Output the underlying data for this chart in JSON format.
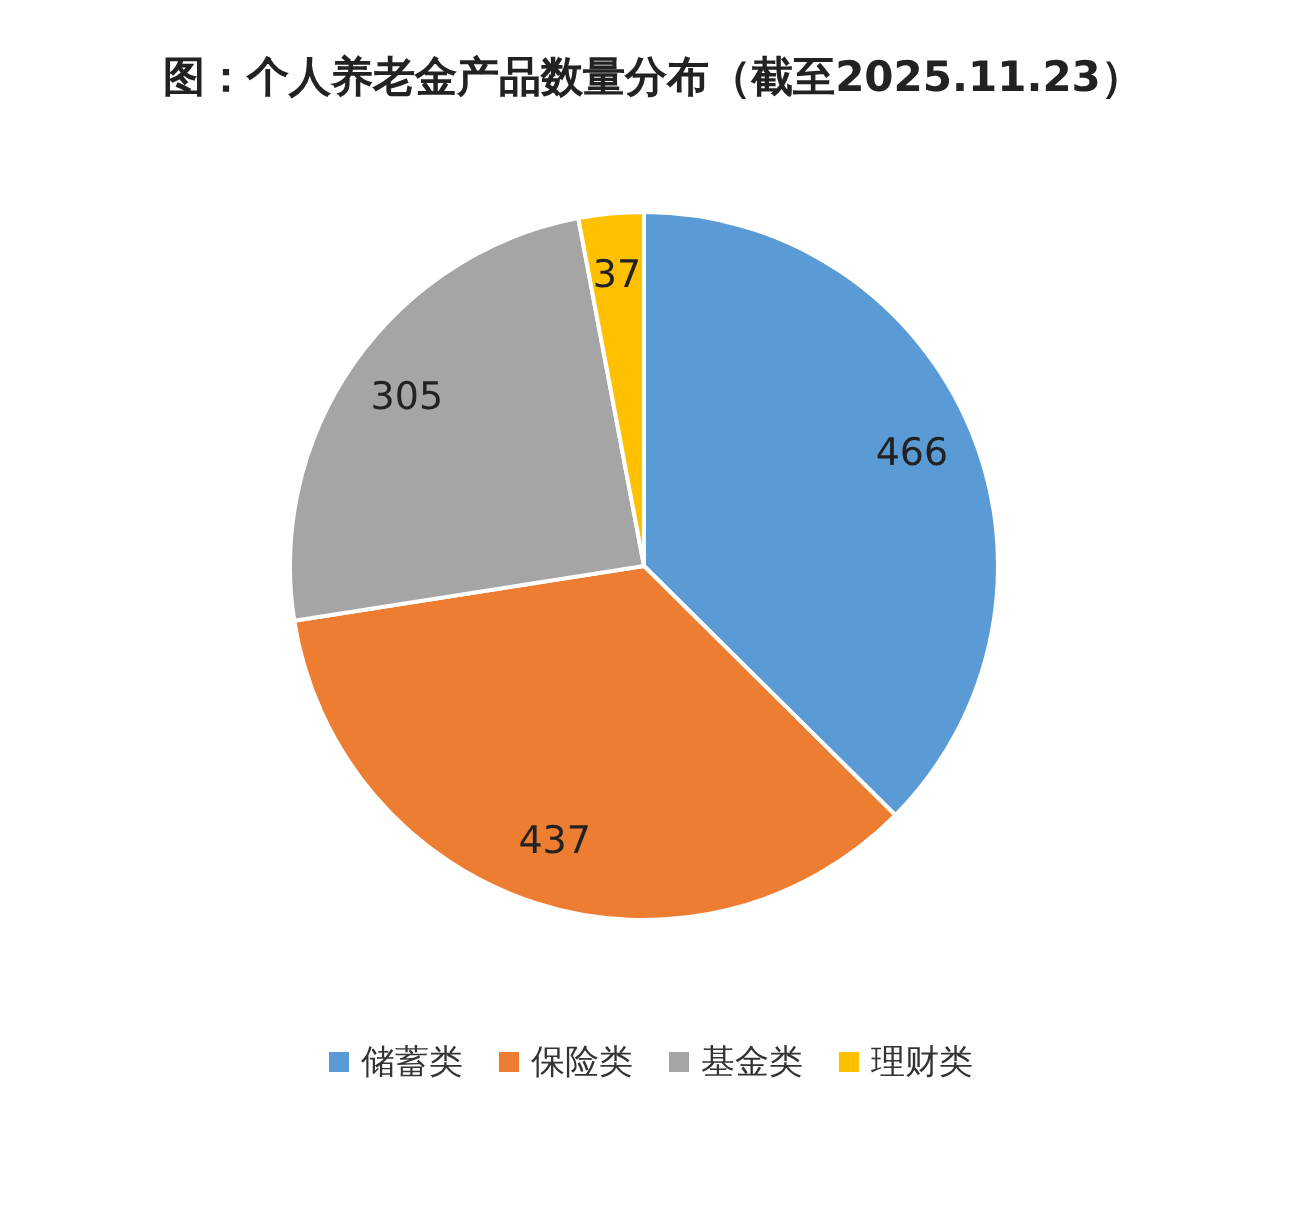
{
  "chart_data": {
    "type": "pie",
    "title": "图：个人养老金产品数量分布（截至2025.11.23）",
    "categories": [
      "储蓄类",
      "保险类",
      "基金类",
      "理财类"
    ],
    "values": [
      466,
      437,
      305,
      37
    ],
    "colors": [
      "#5b9bd5",
      "#ed7d31",
      "#a5a5a5",
      "#ffc000"
    ],
    "data_labels": true,
    "legend": "bottom"
  }
}
